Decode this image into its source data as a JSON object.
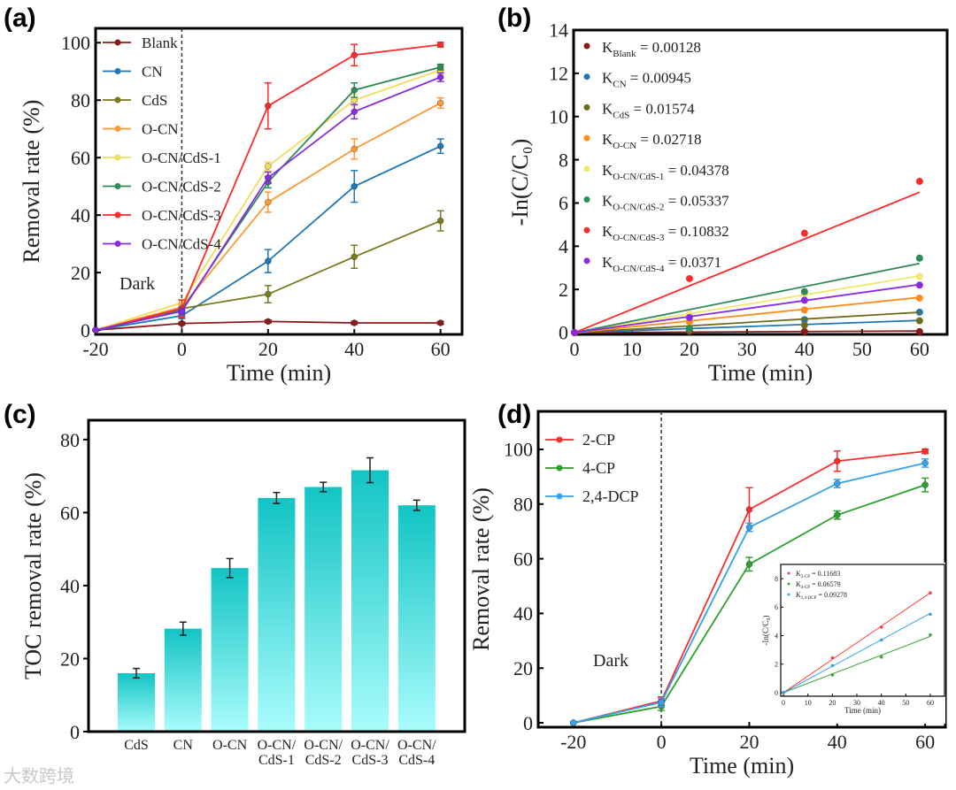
{
  "watermark": "大数跨境",
  "chart_data": [
    {
      "panel": "(a)",
      "type": "line",
      "xlabel": "Time (min)",
      "ylabel": "Removal rate (%)",
      "xlim": [
        -20,
        60
      ],
      "ylim": [
        0,
        100
      ],
      "xticks": [
        "-20",
        "0",
        "20",
        "40",
        "60"
      ],
      "yticks": [
        "0",
        "20",
        "40",
        "60",
        "80",
        "100"
      ],
      "annotation": "Dark",
      "dark_line_x": 0,
      "legend_position": "top-left",
      "x": [
        -20,
        0,
        20,
        40,
        60
      ],
      "series": [
        {
          "name": "Blank",
          "color": "#8b1a1a",
          "values": [
            0,
            2.3,
            3,
            2.5,
            2.5
          ],
          "errors": [
            0,
            0.5,
            0.5,
            0.5,
            0.5
          ]
        },
        {
          "name": "CN",
          "color": "#1f77b4",
          "values": [
            0,
            5,
            24,
            50,
            64
          ],
          "errors": [
            0,
            1,
            4,
            5.5,
            2.5
          ]
        },
        {
          "name": "CdS",
          "color": "#7a7a1e",
          "values": [
            0,
            7.5,
            12.5,
            25.5,
            38
          ],
          "errors": [
            0,
            1,
            3,
            4,
            3.5
          ]
        },
        {
          "name": "O-CN",
          "color": "#ff9933",
          "values": [
            0,
            8,
            44.5,
            63,
            79
          ],
          "errors": [
            0,
            1,
            3.5,
            3.5,
            1.8
          ]
        },
        {
          "name": "O-CN/CdS-1",
          "color": "#f2dc5d",
          "values": [
            0,
            9.5,
            57,
            80,
            90.5
          ],
          "errors": [
            0,
            1,
            1.5,
            2,
            1.5
          ]
        },
        {
          "name": "O-CN/CdS-2",
          "color": "#2e8b57",
          "values": [
            0,
            7,
            51.5,
            83.5,
            91.5
          ],
          "errors": [
            0,
            1,
            2,
            2.5,
            1
          ]
        },
        {
          "name": "O-CN/CdS-3",
          "color": "#ff2a2a",
          "values": [
            0,
            7.5,
            78,
            95.7,
            99.3
          ],
          "errors": [
            0,
            3,
            8,
            3.7,
            0.8
          ]
        },
        {
          "name": "O-CN/CdS-4",
          "color": "#8a2be2",
          "values": [
            0,
            6.5,
            53,
            76,
            88
          ],
          "errors": [
            0,
            1,
            2,
            2.5,
            1.5
          ]
        }
      ]
    },
    {
      "panel": "(b)",
      "type": "scatter",
      "xlabel": "Time (min)",
      "ylabel": "-In(C/C₀)",
      "xlim": [
        0,
        60
      ],
      "ylim": [
        0,
        14
      ],
      "xticks": [
        "0",
        "10",
        "20",
        "30",
        "40",
        "50",
        "60"
      ],
      "yticks": [
        "0",
        "2",
        "4",
        "6",
        "8",
        "10",
        "12",
        "14"
      ],
      "legend_position": "top-left",
      "x": [
        0,
        20,
        40,
        60
      ],
      "series": [
        {
          "name": "Blank",
          "k": "0.00128",
          "color": "#8b1a1a",
          "values": [
            0,
            0.05,
            0.05,
            0.05
          ]
        },
        {
          "name": "CN",
          "k": "0.00945",
          "color": "#1f77b4",
          "values": [
            0,
            0.2,
            0.6,
            0.95
          ]
        },
        {
          "name": "CdS",
          "k": "0.01574",
          "color": "#6b6b1a",
          "values": [
            0,
            0.1,
            0.35,
            0.55
          ]
        },
        {
          "name": "O-CN",
          "k": "0.02718",
          "color": "#ff8c1a",
          "values": [
            0,
            0.5,
            1.05,
            1.6
          ]
        },
        {
          "name": "O-CN/CdS-1",
          "k": "0.04378",
          "color": "#f2e66d",
          "values": [
            0,
            0.85,
            1.8,
            2.6
          ]
        },
        {
          "name": "O-CN/CdS-2",
          "k": "0.05337",
          "color": "#2e8b57",
          "values": [
            0,
            0.2,
            1.9,
            3.45
          ]
        },
        {
          "name": "O-CN/CdS-3",
          "k": "0.10832",
          "color": "#ff2a2a",
          "values": [
            0,
            2.5,
            4.6,
            7.0
          ]
        },
        {
          "name": "O-CN/CdS-4",
          "k": "0.0371",
          "color": "#8a2be2",
          "values": [
            0,
            0.7,
            1.5,
            2.2
          ]
        }
      ]
    },
    {
      "panel": "(c)",
      "type": "bar",
      "xlabel": "",
      "ylabel": "TOC removal rate (%)",
      "ylim": [
        0,
        85
      ],
      "yticks": [
        "0",
        "20",
        "40",
        "60",
        "80"
      ],
      "categories": [
        "CdS",
        "CN",
        "O-CN",
        "O-CN/CdS-1",
        "O-CN/CdS-2",
        "O-CN/CdS-3",
        "O-CN/CdS-4"
      ],
      "values": [
        16,
        28.2,
        44.8,
        64,
        67,
        71.6,
        62
      ],
      "errors": [
        1.3,
        1.8,
        2.6,
        1.5,
        1.3,
        3.4,
        1.4
      ],
      "color_top": "#12c4c4",
      "color_bottom": "#aafcfc"
    },
    {
      "panel": "(d)",
      "type": "line",
      "xlabel": "Time (min)",
      "ylabel": "Removal rate (%)",
      "xlim": [
        -20,
        60
      ],
      "ylim": [
        0,
        100
      ],
      "xticks": [
        "-20",
        "0",
        "20",
        "40",
        "60"
      ],
      "yticks": [
        "0",
        "20",
        "40",
        "60",
        "80",
        "100"
      ],
      "annotation": "Dark",
      "dark_line_x": 0,
      "legend_position": "top-left",
      "x": [
        -20,
        0,
        20,
        40,
        60
      ],
      "series": [
        {
          "name": "2-CP",
          "color": "#ff2a2a",
          "values": [
            0,
            8,
            78,
            95.7,
            99.3
          ],
          "errors": [
            0,
            1.5,
            8,
            3.7,
            0.8
          ]
        },
        {
          "name": "4-CP",
          "color": "#2ca02c",
          "values": [
            0,
            6,
            58,
            76,
            87
          ],
          "errors": [
            0,
            1.5,
            2.5,
            1.5,
            2.5
          ]
        },
        {
          "name": "2,4-DCP",
          "color": "#33a3f0",
          "values": [
            0,
            7.5,
            71.5,
            87.5,
            95
          ],
          "errors": [
            0,
            1.5,
            1.5,
            1.5,
            1.5
          ]
        }
      ],
      "inset": {
        "type": "scatter",
        "xlabel": "Time (min)",
        "ylabel": "-In(C/C₀)",
        "xlim": [
          0,
          60
        ],
        "ylim": [
          0,
          8
        ],
        "xticks": [
          "0",
          "10",
          "20",
          "30",
          "40",
          "50",
          "60"
        ],
        "yticks": [
          "0",
          "2",
          "4",
          "6",
          "8"
        ],
        "x": [
          0,
          20,
          40,
          60
        ],
        "series": [
          {
            "name": "2-CP",
            "k": "0.11683",
            "color": "#ff4040",
            "values": [
              0,
              2.45,
              4.6,
              7.0
            ]
          },
          {
            "name": "4-CP",
            "k": "0.06579",
            "color": "#3aa63a",
            "values": [
              0,
              1.25,
              2.5,
              4.05
            ]
          },
          {
            "name": "2,4-DCP",
            "k": "0.09278",
            "color": "#33a3f0",
            "values": [
              0,
              1.9,
              3.7,
              5.5
            ]
          }
        ]
      }
    }
  ]
}
